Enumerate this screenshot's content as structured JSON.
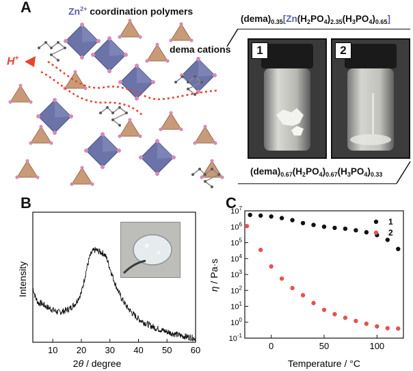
{
  "panel_a": {
    "label": "A",
    "zn_polymer_prefix": "Zn",
    "zn_polymer_charge": "2+",
    "zn_polymer_suffix": " coordination polymers",
    "dema_label": "dema cations",
    "proton_label": "H",
    "proton_charge": "+",
    "formula_top": {
      "p1": "(dema)",
      "s1": "0.35",
      "p2": "[",
      "zn": "Zn",
      "p3": "(H",
      "s2": "2",
      "p4": "PO",
      "s3": "4",
      "p5": ")",
      "s4": "2.35",
      "p6": "(H",
      "s5": "3",
      "p7": "PO",
      "s6": "4",
      "p8": ")",
      "s7": "0.65",
      "p9": "]"
    },
    "formula_bottom": {
      "p1": "(dema)",
      "s1": "0.67",
      "p2": "(H",
      "s2": "2",
      "p3": "PO",
      "s3": "4",
      "p4": ")",
      "s4": "0.67",
      "p5": "(H",
      "s5": "3",
      "p6": "PO",
      "s6": "4",
      "p7": ")",
      "s7": "0.33"
    },
    "vial_1_tag": "1",
    "vial_2_tag": "2",
    "colors": {
      "zn_blue": "#5b5fa8",
      "octahedron": "#6b73a8",
      "tetrahedron": "#c89a78",
      "oxygen": "#d98ab8",
      "proton_path": "#e8442e"
    }
  },
  "panel_b": {
    "label": "B",
    "chart_data": {
      "type": "line",
      "xlabel_theta": "θ",
      "xlabel_prefix": "2",
      "xlabel_suffix": " / degree",
      "ylabel": "Intensity",
      "xlim": [
        3,
        60
      ],
      "xticks": [
        "10",
        "20",
        "30",
        "40",
        "50",
        "60"
      ],
      "xtick_values": [
        10,
        20,
        30,
        40,
        50,
        60
      ],
      "x": [
        3,
        4,
        5,
        6,
        8,
        10,
        12,
        14,
        16,
        18,
        20,
        21,
        22,
        23,
        24,
        25,
        26,
        27,
        28,
        29,
        30,
        32,
        34,
        36,
        38,
        40,
        43,
        46,
        50,
        55,
        60
      ],
      "y": [
        0.42,
        0.34,
        0.3,
        0.3,
        0.27,
        0.25,
        0.23,
        0.24,
        0.26,
        0.3,
        0.38,
        0.48,
        0.58,
        0.66,
        0.7,
        0.71,
        0.7,
        0.69,
        0.68,
        0.64,
        0.57,
        0.44,
        0.34,
        0.27,
        0.22,
        0.18,
        0.14,
        0.11,
        0.08,
        0.05,
        0.03
      ]
    }
  },
  "panel_c": {
    "label": "C",
    "chart_data": {
      "type": "scatter",
      "ylabel_eta": "η",
      "ylabel_suffix": " / Pa·s",
      "xlabel": "Temperature / °C",
      "xlim": [
        -25,
        125
      ],
      "ylog": true,
      "ylim_exp": [
        -1,
        7
      ],
      "xticks": [
        "0",
        "50",
        "100"
      ],
      "xtick_values": [
        0,
        50,
        100
      ],
      "ytick_exps": [
        -1,
        0,
        1,
        2,
        3,
        4,
        5,
        6,
        7
      ],
      "ytick_base": "10",
      "ytick_sups": [
        "-1",
        "0",
        "1",
        "2",
        "3",
        "4",
        "5",
        "6",
        "7"
      ],
      "legend_position": "top-right",
      "series": [
        {
          "name": "1",
          "color": "#111111",
          "x": [
            -20,
            -10,
            0,
            10,
            20,
            30,
            40,
            50,
            60,
            70,
            80,
            90,
            100,
            110,
            120
          ],
          "y": [
            5500000.0,
            5000000.0,
            4400000.0,
            3500000.0,
            2600000.0,
            1700000.0,
            1300000.0,
            1000000.0,
            850000.0,
            750000.0,
            600000.0,
            450000.0,
            300000.0,
            150000.0,
            40000.0
          ]
        },
        {
          "name": "2",
          "color": "#e05555",
          "x": [
            -23,
            -10,
            0,
            10,
            20,
            30,
            40,
            50,
            60,
            70,
            80,
            90,
            100,
            110,
            120
          ],
          "y": [
            1100000.0,
            35000.0,
            3200.0,
            550.0,
            140.0,
            50.0,
            16.0,
            6.0,
            3.2,
            1.9,
            1.2,
            0.8,
            0.55,
            0.42,
            0.4
          ]
        }
      ]
    }
  }
}
